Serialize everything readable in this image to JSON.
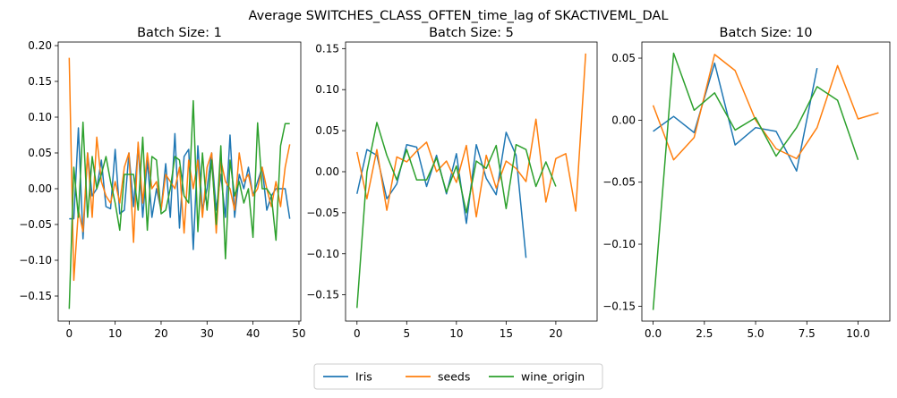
{
  "figure_title": "Average SWITCHES_CLASS_OFTEN_time_lag of SKACTIVEML_DAL",
  "colors": {
    "Iris": "#1f77b4",
    "seeds": "#ff7f0e",
    "wine_origin": "#2ca02c"
  },
  "legend": {
    "placement": "bottom-center",
    "entries": [
      "Iris",
      "seeds",
      "wine_origin"
    ]
  },
  "chart_data": [
    {
      "type": "line",
      "title": "Batch Size: 1",
      "xlim": [
        -2.4,
        50.4
      ],
      "ylim": [
        -0.185,
        0.205
      ],
      "xticks": [
        0,
        10,
        20,
        30,
        40,
        50
      ],
      "xtick_labels": [
        "0",
        "10",
        "20",
        "30",
        "40",
        "50"
      ],
      "yticks": [
        -0.15,
        -0.1,
        -0.05,
        0.0,
        0.05,
        0.1,
        0.15,
        0.2
      ],
      "ytick_labels": [
        "−0.15",
        "−0.10",
        "−0.05",
        "0.00",
        "0.05",
        "0.10",
        "0.15",
        "0.20"
      ],
      "series": [
        {
          "name": "Iris",
          "x": [
            0,
            1,
            2,
            3,
            4,
            5,
            6,
            7,
            8,
            9,
            10,
            11,
            12,
            13,
            14,
            15,
            16,
            17,
            18,
            19,
            20,
            21,
            22,
            23,
            24,
            25,
            26,
            27,
            28,
            29,
            30,
            31,
            32,
            33,
            34,
            35,
            36,
            37,
            38,
            39,
            40,
            41,
            42,
            43,
            44,
            45,
            46,
            47,
            48
          ],
          "values": [
            -0.042,
            -0.042,
            0.085,
            -0.07,
            0.05,
            -0.01,
            0.0,
            0.04,
            -0.025,
            -0.028,
            0.055,
            -0.035,
            -0.03,
            0.05,
            -0.025,
            0.06,
            -0.04,
            0.04,
            -0.04,
            0.0,
            -0.03,
            0.035,
            -0.04,
            0.077,
            -0.055,
            0.045,
            0.055,
            -0.085,
            0.06,
            -0.03,
            0.0,
            0.05,
            -0.03,
            0.02,
            -0.04,
            0.075,
            -0.04,
            0.02,
            0.0,
            0.03,
            -0.01,
            0.01,
            0.03,
            -0.03,
            -0.01,
            0.0,
            0.0,
            0.0,
            -0.042
          ]
        },
        {
          "name": "seeds",
          "x": [
            0,
            1,
            2,
            3,
            4,
            5,
            6,
            7,
            8,
            9,
            10,
            11,
            12,
            13,
            14,
            15,
            16,
            17,
            18,
            19,
            20,
            21,
            22,
            23,
            24,
            25,
            26,
            27,
            28,
            29,
            30,
            31,
            32,
            33,
            34,
            35,
            36,
            37,
            38,
            39,
            40,
            41,
            42,
            43,
            44,
            45,
            46,
            47,
            48
          ],
          "values": [
            0.183,
            -0.128,
            -0.03,
            -0.06,
            0.05,
            -0.04,
            0.072,
            0.01,
            -0.01,
            -0.02,
            0.01,
            -0.02,
            0.03,
            0.05,
            -0.075,
            0.065,
            -0.02,
            0.05,
            0.0,
            0.01,
            -0.03,
            0.02,
            0.01,
            0.0,
            0.03,
            -0.062,
            0.04,
            0.0,
            0.04,
            -0.04,
            0.03,
            0.05,
            -0.062,
            0.04,
            0.01,
            0.0,
            -0.03,
            0.05,
            0.01,
            0.02,
            -0.01,
            0.0,
            0.03,
            0.0,
            -0.025,
            0.01,
            -0.025,
            0.03,
            0.062
          ]
        },
        {
          "name": "wine_origin",
          "x": [
            0,
            1,
            2,
            3,
            4,
            5,
            6,
            7,
            8,
            9,
            10,
            11,
            12,
            13,
            14,
            15,
            16,
            17,
            18,
            19,
            20,
            21,
            22,
            23,
            24,
            25,
            26,
            27,
            28,
            29,
            30,
            31,
            32,
            33,
            34,
            35,
            36,
            37,
            38,
            39,
            40,
            41,
            42,
            43,
            44,
            45,
            46,
            47,
            48
          ],
          "values": [
            -0.168,
            0.03,
            -0.04,
            0.093,
            -0.04,
            0.045,
            0.0,
            0.02,
            0.045,
            0.01,
            -0.02,
            -0.058,
            0.02,
            0.02,
            0.02,
            -0.03,
            0.072,
            -0.058,
            0.045,
            0.04,
            -0.035,
            -0.03,
            0.0,
            0.045,
            0.04,
            -0.01,
            -0.02,
            0.123,
            -0.06,
            0.05,
            -0.03,
            0.04,
            -0.05,
            0.06,
            -0.098,
            0.04,
            -0.01,
            0.01,
            -0.02,
            0.0,
            -0.068,
            0.092,
            0.0,
            0.0,
            -0.01,
            -0.072,
            0.06,
            0.091,
            0.091
          ]
        }
      ]
    },
    {
      "type": "line",
      "title": "Batch Size: 5",
      "xlim": [
        -1.15,
        24.15
      ],
      "ylim": [
        -0.182,
        0.158
      ],
      "xticks": [
        0,
        5,
        10,
        15,
        20
      ],
      "xtick_labels": [
        "0",
        "5",
        "10",
        "15",
        "20"
      ],
      "yticks": [
        -0.15,
        -0.1,
        -0.05,
        0.0,
        0.05,
        0.1,
        0.15
      ],
      "ytick_labels": [
        "−0.15",
        "−0.10",
        "−0.05",
        "0.00",
        "0.05",
        "0.10",
        "0.15"
      ],
      "series": [
        {
          "name": "Iris",
          "x": [
            0,
            1,
            2,
            3,
            4,
            5,
            6,
            7,
            8,
            9,
            10,
            11,
            12,
            13,
            14,
            15,
            16,
            17
          ],
          "values": [
            -0.027,
            0.027,
            0.02,
            -0.033,
            -0.015,
            0.033,
            0.03,
            -0.018,
            0.02,
            -0.027,
            0.022,
            -0.063,
            0.033,
            -0.008,
            -0.028,
            0.048,
            0.02,
            -0.105
          ]
        },
        {
          "name": "seeds",
          "x": [
            0,
            1,
            2,
            3,
            4,
            5,
            6,
            7,
            8,
            9,
            10,
            11,
            12,
            13,
            14,
            15,
            16,
            17,
            18,
            19,
            20,
            21,
            22,
            23
          ],
          "values": [
            0.024,
            -0.033,
            0.027,
            -0.047,
            0.018,
            0.012,
            0.025,
            0.036,
            0.0,
            0.013,
            -0.013,
            0.032,
            -0.055,
            0.02,
            -0.02,
            0.013,
            0.004,
            -0.012,
            0.064,
            -0.037,
            0.016,
            0.022,
            -0.048,
            0.144
          ]
        },
        {
          "name": "wine_origin",
          "x": [
            0,
            1,
            2,
            3,
            4,
            5,
            6,
            7,
            8,
            9,
            10,
            11,
            12,
            13,
            14,
            15,
            16,
            17,
            18,
            19,
            20
          ],
          "values": [
            -0.166,
            0.0,
            0.06,
            0.02,
            -0.01,
            0.027,
            -0.01,
            -0.01,
            0.017,
            -0.025,
            0.007,
            -0.05,
            0.013,
            0.004,
            0.032,
            -0.045,
            0.033,
            0.027,
            -0.018,
            0.012,
            -0.018
          ]
        }
      ]
    },
    {
      "type": "line",
      "title": "Batch Size: 10",
      "xlim": [
        -0.55,
        11.55
      ],
      "ylim": [
        -0.162,
        0.063
      ],
      "xticks": [
        0,
        2.5,
        5,
        7.5,
        10
      ],
      "xtick_labels": [
        "0.0",
        "2.5",
        "5.0",
        "7.5",
        "10.0"
      ],
      "yticks": [
        -0.15,
        -0.1,
        -0.05,
        0.0,
        0.05
      ],
      "ytick_labels": [
        "−0.15",
        "−0.10",
        "−0.05",
        "0.00",
        "0.05"
      ],
      "series": [
        {
          "name": "Iris",
          "x": [
            0,
            1,
            2,
            3,
            4,
            5,
            6,
            7,
            8
          ],
          "values": [
            -0.009,
            0.003,
            -0.01,
            0.046,
            -0.02,
            -0.006,
            -0.009,
            -0.041,
            0.042
          ]
        },
        {
          "name": "seeds",
          "x": [
            0,
            1,
            2,
            3,
            4,
            5,
            6,
            7,
            8,
            9,
            10,
            11
          ],
          "values": [
            0.012,
            -0.032,
            -0.014,
            0.053,
            0.04,
            0.0,
            -0.023,
            -0.031,
            -0.006,
            0.044,
            0.001,
            0.006
          ]
        },
        {
          "name": "wine_origin",
          "x": [
            0,
            1,
            2,
            3,
            4,
            5,
            6,
            7,
            8,
            9,
            10
          ],
          "values": [
            -0.153,
            0.054,
            0.008,
            0.022,
            -0.008,
            0.002,
            -0.029,
            -0.006,
            0.027,
            0.016,
            -0.032
          ]
        }
      ]
    }
  ]
}
